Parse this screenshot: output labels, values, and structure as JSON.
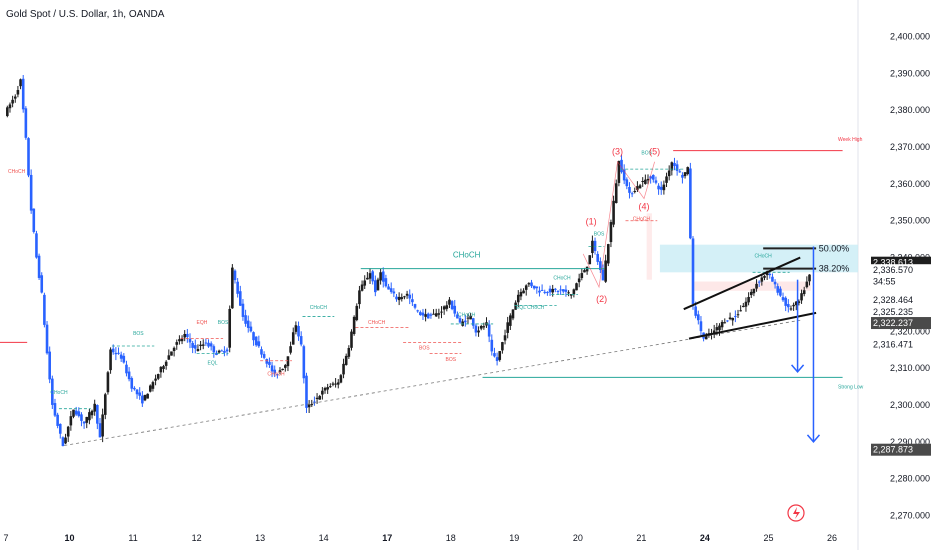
{
  "header": {
    "title": "Gold Spot / U.S. Dollar, 1h, OANDA"
  },
  "colors": {
    "up": "#1e1e1e",
    "down": "#2962ff",
    "smc": "#26a69a",
    "bos": "#26a69a",
    "choch": "#ef5350",
    "wave": "#f23645",
    "fib": "#222222",
    "arrow": "#2962ff",
    "axis_text": "#131722",
    "current_price_bg": "#1e1e1e",
    "highlight_label_bg": "#4a4a4a"
  },
  "chart_data": {
    "type": "candlestick",
    "title": "Gold Spot / U.S. Dollar, 1h, OANDA",
    "ylim": [
      2265,
      2405
    ],
    "y_ticks": [
      {
        "value": 2400,
        "label": "2,400.000"
      },
      {
        "value": 2390,
        "label": "2,390.000"
      },
      {
        "value": 2380,
        "label": "2,380.000"
      },
      {
        "value": 2370,
        "label": "2,370.000"
      },
      {
        "value": 2360,
        "label": "2,360.000"
      },
      {
        "value": 2350,
        "label": "2,350.000"
      },
      {
        "value": 2340,
        "label": "2,340.000"
      },
      {
        "value": 2320,
        "label": "2,320.000"
      },
      {
        "value": 2310,
        "label": "2,310.000"
      },
      {
        "value": 2300,
        "label": "2,300.000"
      },
      {
        "value": 2290,
        "label": "2,290.000"
      },
      {
        "value": 2280,
        "label": "2,280.000"
      },
      {
        "value": 2270,
        "label": "2,270.000"
      }
    ],
    "x_ticks": [
      {
        "index": 0,
        "label": "7",
        "bold": false
      },
      {
        "index": 12,
        "label": "10",
        "bold": true
      },
      {
        "index": 24,
        "label": "11",
        "bold": false
      },
      {
        "index": 36,
        "label": "12",
        "bold": false
      },
      {
        "index": 48,
        "label": "13",
        "bold": false
      },
      {
        "index": 60,
        "label": "14",
        "bold": false
      },
      {
        "index": 72,
        "label": "17",
        "bold": true
      },
      {
        "index": 84,
        "label": "18",
        "bold": false
      },
      {
        "index": 96,
        "label": "19",
        "bold": false
      },
      {
        "index": 108,
        "label": "20",
        "bold": false
      },
      {
        "index": 120,
        "label": "21",
        "bold": false
      },
      {
        "index": 132,
        "label": "24",
        "bold": true
      },
      {
        "index": 144,
        "label": "25",
        "bold": false
      },
      {
        "index": 156,
        "label": "26",
        "bold": false
      }
    ],
    "price_labels": [
      {
        "value": 2338.613,
        "label": "2,338.613",
        "style": "dark"
      },
      {
        "value": 2336.57,
        "label": "2,336.570",
        "style": "plain"
      },
      {
        "value": 2333.5,
        "label": "34:55",
        "style": "plain"
      },
      {
        "value": 2328.464,
        "label": "2,328.464",
        "style": "plain"
      },
      {
        "value": 2325.235,
        "label": "2,325.235",
        "style": "plain"
      },
      {
        "value": 2322.237,
        "label": "2,322.237",
        "style": "grey"
      },
      {
        "value": 2316.471,
        "label": "2,316.471",
        "style": "plain"
      },
      {
        "value": 2287.873,
        "label": "2,287.873",
        "style": "grey"
      }
    ],
    "path_points": [
      [
        0,
        2379
      ],
      [
        2,
        2384
      ],
      [
        3,
        2388
      ],
      [
        4,
        2372
      ],
      [
        5,
        2353
      ],
      [
        6,
        2340
      ],
      [
        7,
        2330
      ],
      [
        8,
        2314
      ],
      [
        9,
        2300
      ],
      [
        11,
        2289
      ],
      [
        13,
        2299
      ],
      [
        15,
        2295
      ],
      [
        17,
        2300
      ],
      [
        18,
        2291
      ],
      [
        20,
        2315
      ],
      [
        22,
        2313
      ],
      [
        24,
        2305
      ],
      [
        26,
        2301
      ],
      [
        28,
        2306
      ],
      [
        30,
        2311
      ],
      [
        32,
        2316
      ],
      [
        34,
        2319
      ],
      [
        36,
        2315
      ],
      [
        38,
        2317
      ],
      [
        40,
        2314
      ],
      [
        42,
        2315
      ],
      [
        43,
        2337
      ],
      [
        45,
        2324
      ],
      [
        47,
        2318
      ],
      [
        49,
        2313
      ],
      [
        51,
        2308
      ],
      [
        53,
        2311
      ],
      [
        55,
        2322
      ],
      [
        56,
        2316
      ],
      [
        57,
        2299
      ],
      [
        59,
        2302
      ],
      [
        61,
        2305
      ],
      [
        63,
        2306
      ],
      [
        65,
        2316
      ],
      [
        67,
        2331
      ],
      [
        69,
        2336
      ],
      [
        70,
        2331
      ],
      [
        71,
        2336
      ],
      [
        72,
        2332
      ],
      [
        74,
        2329
      ],
      [
        76,
        2330
      ],
      [
        78,
        2325
      ],
      [
        80,
        2324
      ],
      [
        82,
        2325
      ],
      [
        84,
        2328
      ],
      [
        86,
        2322
      ],
      [
        88,
        2324
      ],
      [
        89,
        2320
      ],
      [
        91,
        2322
      ],
      [
        92,
        2314
      ],
      [
        93,
        2312
      ],
      [
        95,
        2322
      ],
      [
        97,
        2330
      ],
      [
        99,
        2333
      ],
      [
        101,
        2331
      ],
      [
        103,
        2331
      ],
      [
        105,
        2331
      ],
      [
        107,
        2330
      ],
      [
        108,
        2333
      ],
      [
        110,
        2338
      ],
      [
        111,
        2344
      ],
      [
        112,
        2339
      ],
      [
        113,
        2334
      ],
      [
        114,
        2344
      ],
      [
        116,
        2366
      ],
      [
        118,
        2357
      ],
      [
        120,
        2360
      ],
      [
        122,
        2362
      ],
      [
        124,
        2358
      ],
      [
        126,
        2366
      ],
      [
        128,
        2362
      ],
      [
        129,
        2364
      ],
      [
        130,
        2327
      ],
      [
        132,
        2318
      ],
      [
        134,
        2320
      ],
      [
        136,
        2323
      ],
      [
        138,
        2324
      ],
      [
        140,
        2328
      ],
      [
        142,
        2333
      ],
      [
        144,
        2336
      ],
      [
        146,
        2331
      ],
      [
        148,
        2326
      ],
      [
        150,
        2328
      ],
      [
        152,
        2335
      ]
    ],
    "annotations": {
      "smc_labels": [
        {
          "text": "CHoCH",
          "x": 10,
          "y": 2303,
          "color": "smc"
        },
        {
          "text": "BOS",
          "x": 25,
          "y": 2319,
          "color": "bos"
        },
        {
          "text": "EQH",
          "x": 37,
          "y": 2322,
          "color": "choch"
        },
        {
          "text": "BOS",
          "x": 41,
          "y": 2322,
          "color": "bos"
        },
        {
          "text": "EQL",
          "x": 39,
          "y": 2311,
          "color": "bos"
        },
        {
          "text": "CHoCH",
          "x": 59,
          "y": 2326,
          "color": "smc"
        },
        {
          "text": "CHoCH",
          "x": 51,
          "y": 2308,
          "color": "choch"
        },
        {
          "text": "CHoCH",
          "x": 70,
          "y": 2322,
          "color": "choch"
        },
        {
          "text": "CHoCH",
          "x": 87,
          "y": 2324,
          "color": "smc"
        },
        {
          "text": "BOS",
          "x": 79,
          "y": 2315,
          "color": "choch"
        },
        {
          "text": "BOS",
          "x": 84,
          "y": 2312,
          "color": "choch"
        },
        {
          "text": "EQL CHoCH",
          "x": 99,
          "y": 2326,
          "color": "smc"
        },
        {
          "text": "CHoCH",
          "x": 105,
          "y": 2334,
          "color": "smc"
        },
        {
          "text": "BOS",
          "x": 112,
          "y": 2346,
          "color": "smc"
        },
        {
          "text": "BOS",
          "x": 121,
          "y": 2368,
          "color": "smc"
        },
        {
          "text": "CHoCH",
          "x": 120,
          "y": 2350,
          "color": "choch"
        },
        {
          "text": "CHoCH",
          "x": 2,
          "y": 2363,
          "color": "choch"
        },
        {
          "text": "CHoCH",
          "x": 143,
          "y": 2340,
          "color": "smc"
        }
      ],
      "choch_major": {
        "text": "CHoCH",
        "x": 87,
        "y": 2340
      },
      "wave_labels": [
        {
          "text": "(1)",
          "x": 110.5,
          "y": 2349
        },
        {
          "text": "(2)",
          "x": 112.5,
          "y": 2328
        },
        {
          "text": "(3)",
          "x": 115.5,
          "y": 2368
        },
        {
          "text": "(4)",
          "x": 120.5,
          "y": 2353
        },
        {
          "text": "(5)",
          "x": 122.5,
          "y": 2368
        }
      ],
      "fib_levels": [
        {
          "label": "50.00%",
          "value": 2342.5
        },
        {
          "label": "38.20%",
          "value": 2337
        }
      ],
      "right_labels": [
        {
          "text": "Week High",
          "value": 2370
        },
        {
          "text": "Strong Low",
          "value": 2307.5
        }
      ],
      "trendline": {
        "x1": 11,
        "y1": 2289,
        "x2": 150,
        "y2": 2323
      },
      "channel_upper": {
        "x1": 128,
        "y1": 2326,
        "x2": 150,
        "y2": 2340
      },
      "channel_lower": {
        "x1": 129,
        "y1": 2318,
        "x2": 153,
        "y2": 2325
      },
      "strong_low_line": {
        "x1": 90,
        "value": 2307.5
      },
      "week_high_line": {
        "x1": 126,
        "value": 2369
      },
      "left_red_line": {
        "value": 2317
      },
      "arrows": [
        {
          "x": 149.5,
          "from": 2334,
          "to": 2309
        },
        {
          "x": 152.5,
          "from": 2343,
          "to": 2290
        }
      ]
    }
  }
}
